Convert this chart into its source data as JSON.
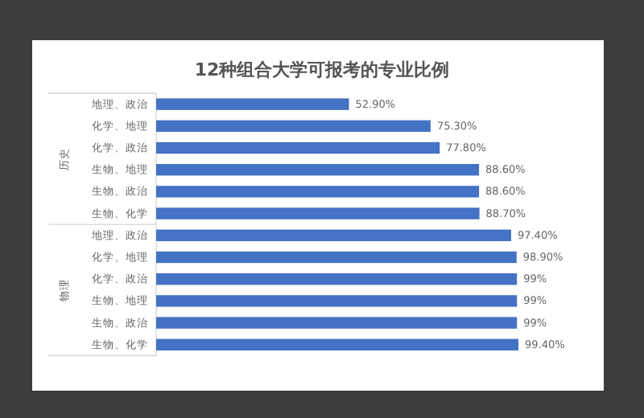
{
  "chart_data": {
    "type": "bar",
    "orientation": "horizontal",
    "title": "12种组合大学可报考的专业比例",
    "categories": [
      "地理、政治",
      "化学、地理",
      "化学、政治",
      "生物、地理",
      "生物、政治",
      "生物、化学",
      "地理、政治",
      "化学、地理",
      "化学、政治",
      "生物、地理",
      "生物、政治",
      "生物、化学"
    ],
    "values": [
      52.9,
      75.3,
      77.8,
      88.6,
      88.6,
      88.7,
      97.4,
      98.9,
      99,
      99,
      99,
      99.4
    ],
    "value_labels": [
      "52.90%",
      "75.30%",
      "77.80%",
      "88.60%",
      "88.60%",
      "88.70%",
      "97.40%",
      "98.90%",
      "99%",
      "99%",
      "99%",
      "99.40%"
    ],
    "color": "#4472c4",
    "annotations": [
      "历史",
      "物理"
    ]
  }
}
